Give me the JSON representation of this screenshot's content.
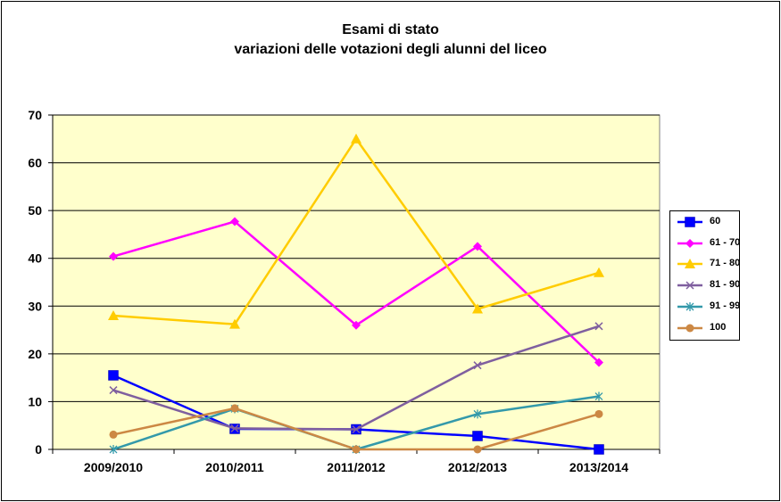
{
  "chart_data": {
    "type": "line",
    "title": "Esami di stato",
    "subtitle": "variazioni delle votazioni degli alunni del liceo",
    "categories": [
      "2009/2010",
      "2010/2011",
      "2011/2012",
      "2012/2013",
      "2013/2014"
    ],
    "ylim": [
      0,
      70
    ],
    "yticks": [
      0,
      10,
      20,
      30,
      40,
      50,
      60,
      70
    ],
    "grid": true,
    "legend_position": "right",
    "plot_background": "#ffffcc",
    "series": [
      {
        "name": "60",
        "color": "#0000ff",
        "marker": "square",
        "values": [
          15.5,
          4.3,
          4.2,
          2.8,
          0
        ]
      },
      {
        "name": "61 - 70",
        "color": "#ff00ff",
        "marker": "diamond",
        "values": [
          40.4,
          47.7,
          26,
          42.5,
          18.2
        ]
      },
      {
        "name": "71 - 80",
        "color": "#ffcc00",
        "marker": "triangle",
        "values": [
          28,
          26.2,
          65,
          29.4,
          37
        ]
      },
      {
        "name": "81 - 90",
        "color": "#7f5f9f",
        "marker": "x",
        "values": [
          12.4,
          4.4,
          4.2,
          17.6,
          25.8
        ]
      },
      {
        "name": "91 - 99",
        "color": "#3399aa",
        "marker": "star",
        "values": [
          0,
          8.5,
          0,
          7.4,
          11.1
        ]
      },
      {
        "name": "100",
        "color": "#cc8844",
        "marker": "circle",
        "values": [
          3.1,
          8.6,
          0,
          0,
          7.4
        ]
      }
    ]
  }
}
